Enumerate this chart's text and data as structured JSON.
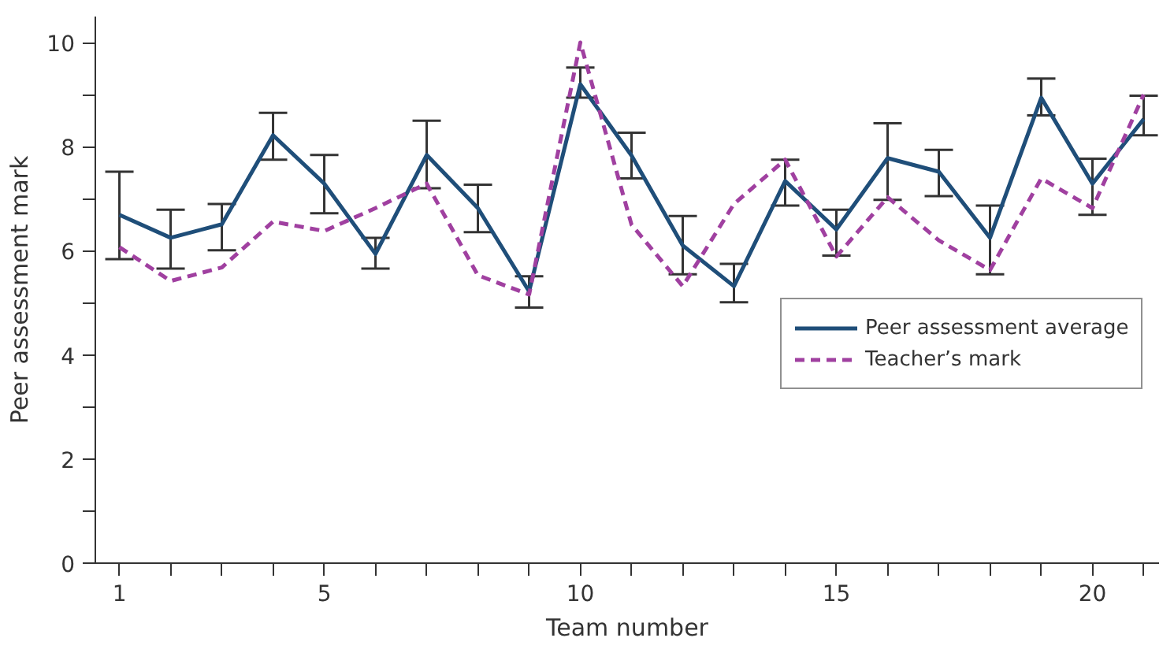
{
  "chart_data": {
    "type": "line",
    "xlabel": "Team number",
    "ylabel": "Peer assessment mark",
    "x": [
      1,
      2,
      3,
      4,
      5,
      6,
      7,
      8,
      9,
      10,
      11,
      12,
      13,
      14,
      15,
      16,
      17,
      18,
      19,
      20,
      21
    ],
    "series": [
      {
        "name": "Peer assessment average",
        "color": "#1f4e79",
        "line_style": "solid",
        "values": [
          6.69,
          6.25,
          6.51,
          8.22,
          7.29,
          5.94,
          7.84,
          6.82,
          5.22,
          9.2,
          7.83,
          6.1,
          5.32,
          7.34,
          6.41,
          7.78,
          7.52,
          6.25,
          8.94,
          7.29,
          8.53
        ],
        "errors": [
          [
            5.84,
            7.52
          ],
          [
            5.66,
            6.79
          ],
          [
            6.01,
            6.9
          ],
          [
            7.75,
            8.65
          ],
          [
            6.72,
            7.84
          ],
          [
            5.66,
            6.25
          ],
          [
            7.2,
            8.5
          ],
          [
            6.36,
            7.27
          ],
          [
            4.91,
            5.51
          ],
          [
            8.94,
            9.52
          ],
          [
            7.39,
            8.27
          ],
          [
            5.55,
            6.67
          ],
          [
            5.01,
            5.75
          ],
          [
            6.87,
            7.75
          ],
          [
            5.91,
            6.79
          ],
          [
            6.98,
            8.45
          ],
          [
            7.05,
            7.94
          ],
          [
            5.55,
            6.87
          ],
          [
            8.6,
            9.31
          ],
          [
            6.69,
            7.77
          ],
          [
            8.22,
            8.98
          ]
        ]
      },
      {
        "name": "Teacher’s mark",
        "color": "#a040a0",
        "line_style": "dashed",
        "values": [
          6.07,
          5.42,
          5.68,
          6.56,
          6.38,
          6.82,
          7.29,
          5.53,
          5.16,
          10.0,
          6.5,
          5.32,
          6.9,
          7.75,
          5.89,
          7.03,
          6.2,
          5.63,
          7.39,
          6.82,
          9.0
        ]
      }
    ],
    "xlim": [
      0.53,
      21.3
    ],
    "ylim": [
      0,
      10.5
    ],
    "xticks": [
      1,
      {
        "value": 2,
        "label": null
      },
      {
        "value": 3,
        "label": null
      },
      {
        "value": 4,
        "label": null
      },
      5,
      {
        "value": 6,
        "label": null
      },
      {
        "value": 7,
        "label": null
      },
      {
        "value": 8,
        "label": null
      },
      {
        "value": 9,
        "label": null
      },
      10,
      {
        "value": 11,
        "label": null
      },
      {
        "value": 12,
        "label": null
      },
      {
        "value": 13,
        "label": null
      },
      {
        "value": 14,
        "label": null
      },
      15,
      {
        "value": 16,
        "label": null
      },
      {
        "value": 17,
        "label": null
      },
      {
        "value": 18,
        "label": null
      },
      {
        "value": 19,
        "label": null
      },
      20,
      {
        "value": 21,
        "label": null
      }
    ],
    "yticks": [
      0,
      {
        "value": 1,
        "label": null
      },
      2,
      {
        "value": 3,
        "label": null
      },
      4,
      {
        "value": 5,
        "label": null
      },
      6,
      {
        "value": 7,
        "label": null
      },
      8,
      {
        "value": 9,
        "label": null
      },
      10
    ],
    "grid": false,
    "legend": "right",
    "marker": "none"
  }
}
